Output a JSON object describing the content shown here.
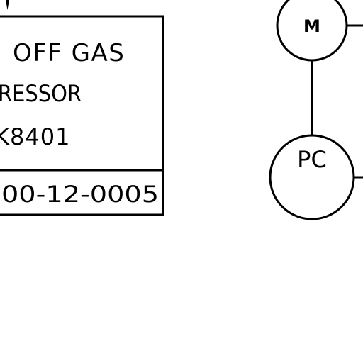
{
  "diagram": {
    "equipment_box": {
      "line1": "OFF GAS",
      "line2": "RESSOR",
      "line3": "K8401",
      "tag": "00-12-0005"
    },
    "instruments": {
      "upper": "M",
      "lower": "PC"
    },
    "colors": {
      "stroke": "#000000",
      "background": "#ffffff"
    }
  }
}
